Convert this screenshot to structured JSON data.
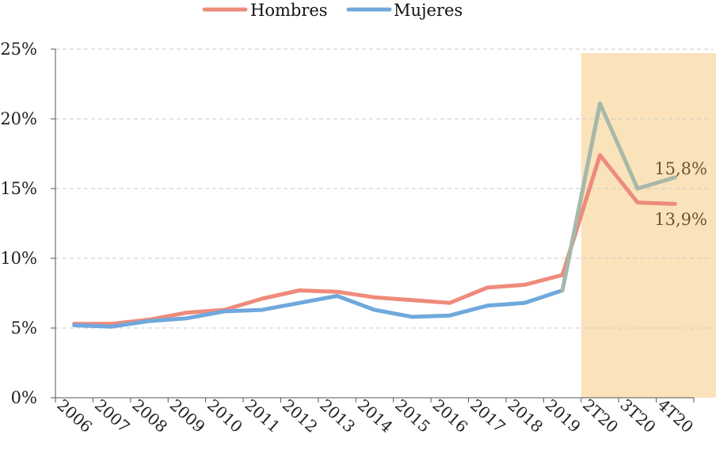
{
  "chart_data": {
    "type": "line",
    "categories": [
      "2006",
      "2007",
      "2008",
      "2009",
      "2010",
      "2011",
      "2012",
      "2013",
      "2014",
      "2015",
      "2016",
      "2017",
      "2018",
      "2019",
      "2T20",
      "3T20",
      "4T20"
    ],
    "series": [
      {
        "name": "Hombres",
        "color": "#ee8b7b",
        "values": [
          5.3,
          5.3,
          5.6,
          6.1,
          6.3,
          7.1,
          7.7,
          7.6,
          7.2,
          7.0,
          6.8,
          7.9,
          8.1,
          8.8,
          17.4,
          14.0,
          13.9
        ]
      },
      {
        "name": "Mujeres",
        "color": "#6fa8dc",
        "highlight_color": "#a8b8a8",
        "values": [
          5.2,
          5.1,
          5.5,
          5.7,
          6.2,
          6.3,
          6.8,
          7.3,
          6.3,
          5.8,
          5.9,
          6.6,
          6.8,
          7.7,
          21.1,
          15.0,
          15.8
        ]
      }
    ],
    "yticks": [
      "0%",
      "5%",
      "10%",
      "15%",
      "20%",
      "25%"
    ],
    "ylim": [
      0,
      25
    ],
    "grid": true,
    "legend": "top-center",
    "highlight": {
      "from_category": "2T20",
      "to_category": "4T20",
      "color": "#fae3bb"
    },
    "annotations": [
      {
        "series": "Mujeres",
        "text": "15,8%"
      },
      {
        "series": "Hombres",
        "text": "13,9%"
      }
    ]
  }
}
